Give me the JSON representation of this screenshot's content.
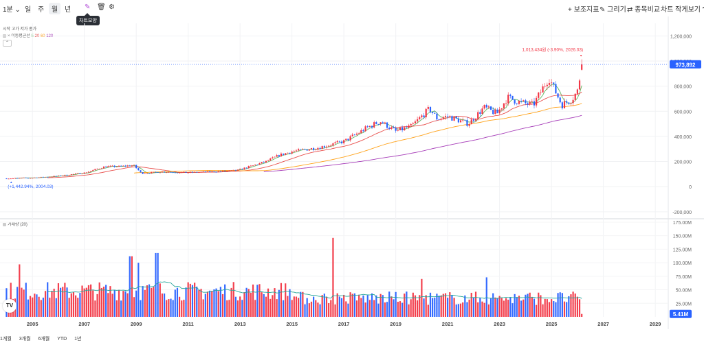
{
  "toolbar": {
    "interval": "1분",
    "periods": [
      "일",
      "주",
      "월",
      "년"
    ],
    "selected_period": "월",
    "tooltip": "차트모양",
    "right": [
      "보조지표",
      "그리기",
      "종목비교",
      "차트 작게보기"
    ]
  },
  "legend": {
    "ohlc": "시작 고가 저가 종가",
    "ma_label": "이동평균선",
    "ma_periods": [
      "5",
      "20",
      "60",
      "120"
    ],
    "volume_label": "거래량 (20)"
  },
  "colors": {
    "up": "#f23645",
    "down": "#2962ff",
    "ma5": "#4caf50",
    "ma20": "#e53935",
    "ma60": "#ff9800",
    "ma120": "#9c27b0",
    "vol_ma": "#26a69a",
    "accent": "#2962ff"
  },
  "annotations": {
    "high": "1,013,434원 (-3.90%, 2026.03)",
    "low": "(+1,442.94%, 2004.03)",
    "last_price": "973,892",
    "last_volume": "5.41M",
    "logo": "TV"
  },
  "bottom_ranges": [
    "1개월",
    "3개월",
    "6개월",
    "YTD",
    "1년"
  ],
  "chart_data": {
    "type": "candlestick",
    "title": "",
    "x_range": [
      2003.75,
      2029.5
    ],
    "x_ticks": [
      "2005",
      "2007",
      "2009",
      "2011",
      "2013",
      "2015",
      "2017",
      "2019",
      "2021",
      "2023",
      "2025",
      "2027",
      "2029"
    ],
    "price_axis": {
      "ylim": [
        -250000,
        1300000
      ],
      "ticks": [
        "1,200,000",
        "1,000,000",
        "800,000",
        "600,000",
        "400,000",
        "200,000",
        "0",
        "-200,000"
      ],
      "tick_values": [
        1200000,
        1000000,
        800000,
        600000,
        400000,
        200000,
        0,
        -200000
      ],
      "last_price_value": 973892
    },
    "price_path": [
      [
        2004.0,
        65000
      ],
      [
        2005.0,
        70000
      ],
      [
        2006.0,
        85000
      ],
      [
        2007.0,
        110000
      ],
      [
        2007.8,
        160000
      ],
      [
        2008.3,
        160000
      ],
      [
        2008.9,
        170000
      ],
      [
        2009.2,
        105000
      ],
      [
        2010.0,
        118000
      ],
      [
        2011.0,
        112000
      ],
      [
        2012.0,
        120000
      ],
      [
        2012.9,
        130000
      ],
      [
        2013.6,
        175000
      ],
      [
        2014.0,
        200000
      ],
      [
        2014.5,
        250000
      ],
      [
        2015.0,
        280000
      ],
      [
        2016.0,
        310000
      ],
      [
        2017.0,
        360000
      ],
      [
        2017.9,
        470000
      ],
      [
        2018.4,
        520000
      ],
      [
        2019.0,
        440000
      ],
      [
        2019.6,
        480000
      ],
      [
        2020.3,
        620000
      ],
      [
        2020.6,
        540000
      ],
      [
        2021.0,
        560000
      ],
      [
        2021.8,
        500000
      ],
      [
        2022.4,
        630000
      ],
      [
        2022.9,
        580000
      ],
      [
        2023.3,
        710000
      ],
      [
        2023.8,
        670000
      ],
      [
        2024.3,
        650000
      ],
      [
        2024.9,
        870000
      ],
      [
        2025.1,
        780000
      ],
      [
        2025.4,
        650000
      ],
      [
        2025.8,
        700000
      ],
      [
        2026.0,
        760000
      ],
      [
        2026.2,
        1000000
      ]
    ],
    "ma_periods": [
      5,
      20,
      60,
      120
    ],
    "volume_axis": {
      "ylim": [
        0,
        180
      ],
      "unit": "M",
      "ticks": [
        "175.00M",
        "150.00M",
        "125.00M",
        "100.00M",
        "75.00M",
        "50.00M",
        "25.00M"
      ],
      "tick_values": [
        175,
        150,
        125,
        100,
        75,
        50,
        25
      ],
      "spikes": [
        [
          2004.5,
          97
        ],
        [
          2008.8,
          112
        ],
        [
          2009.1,
          100
        ],
        [
          2009.8,
          118
        ],
        [
          2016.6,
          146
        ],
        [
          2020.0,
          70
        ],
        [
          2022.5,
          73
        ]
      ],
      "last_volume_value": 5.41
    }
  }
}
